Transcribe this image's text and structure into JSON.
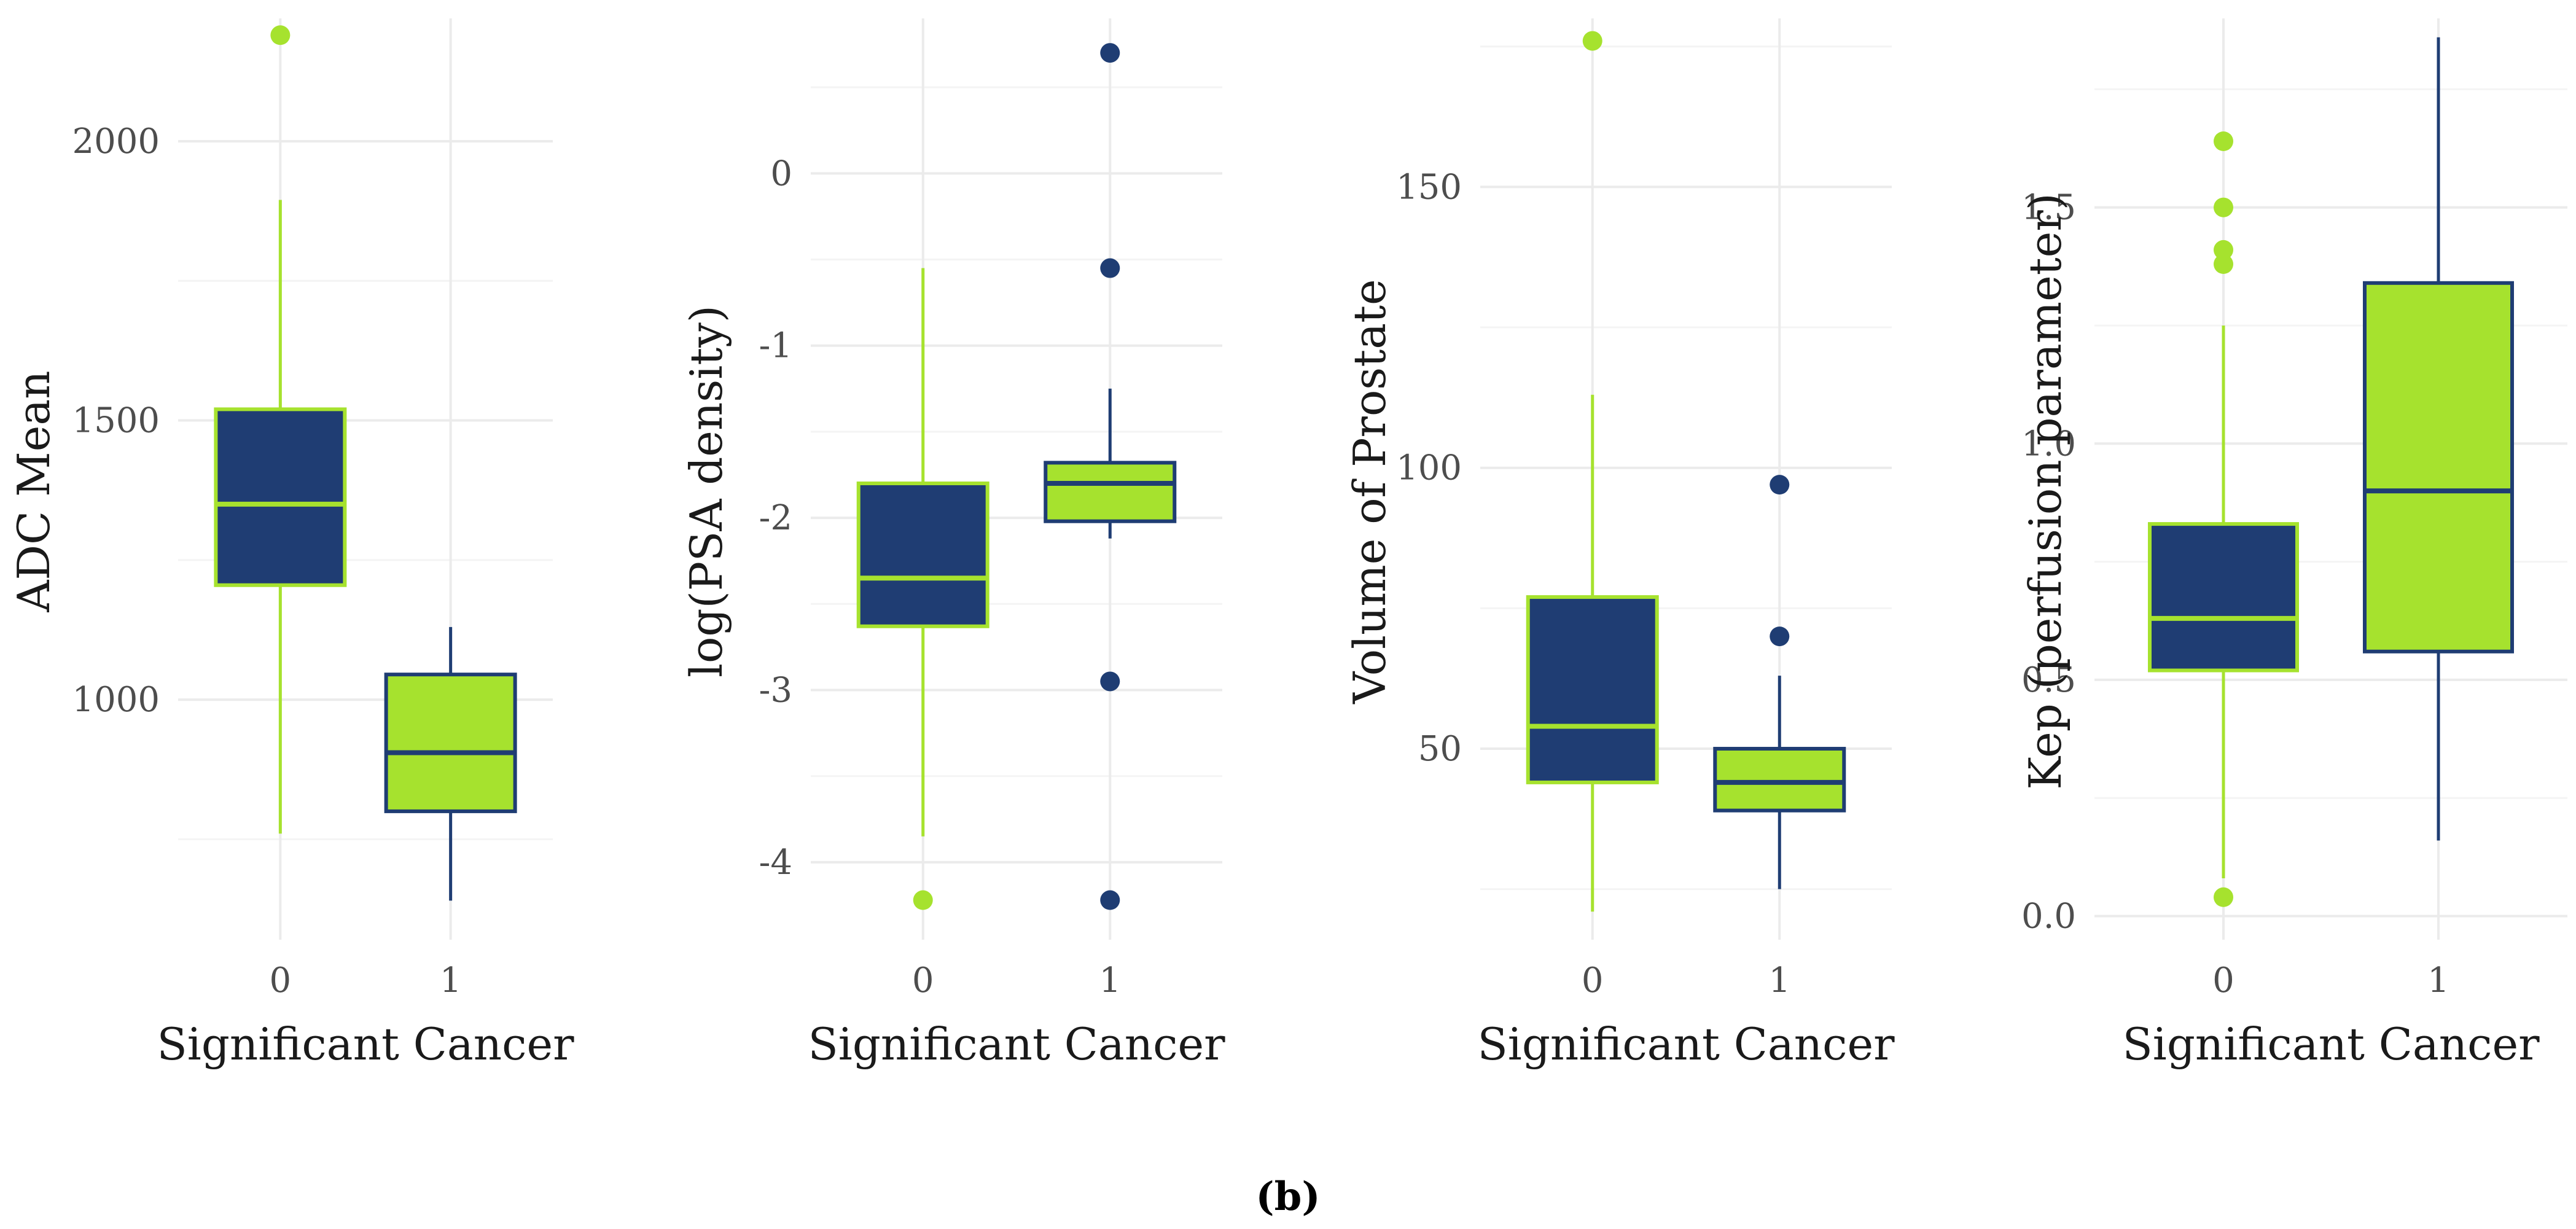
{
  "colors": {
    "navy": "#1f3d73",
    "lime": "#a6e22e",
    "grid_major": "#ebebeb",
    "grid_minor": "#f4f4f4"
  },
  "caption": "(b)",
  "chart_data": [
    {
      "type": "box",
      "ylabel": "ADC Mean",
      "xlabel": "Significant Cancer",
      "categories": [
        "0",
        "1"
      ],
      "yticks": [
        1000,
        1500,
        2000
      ],
      "ytick_labels": [
        "1000",
        "1500",
        "2000"
      ],
      "ylim": [
        570,
        2220
      ],
      "boxes": [
        {
          "group": "0",
          "fill": "navy",
          "line": "lime",
          "q1": 1205,
          "median": 1350,
          "q3": 1520,
          "whisker_low": 760,
          "whisker_high": 1895,
          "outliers": [
            2190
          ]
        },
        {
          "group": "1",
          "fill": "lime",
          "line": "navy",
          "q1": 800,
          "median": 905,
          "q3": 1045,
          "whisker_low": 640,
          "whisker_high": 1130,
          "outliers": []
        }
      ]
    },
    {
      "type": "box",
      "ylabel": "log(PSA density)",
      "xlabel": "Significant Cancer",
      "categories": [
        "0",
        "1"
      ],
      "yticks": [
        -4,
        -3,
        -2,
        -1,
        0
      ],
      "ytick_labels": [
        "-4",
        "-3",
        "-2",
        "-1",
        "0"
      ],
      "ylim": [
        -4.45,
        0.9
      ],
      "boxes": [
        {
          "group": "0",
          "fill": "navy",
          "line": "lime",
          "q1": -2.63,
          "median": -2.35,
          "q3": -1.8,
          "whisker_low": -3.85,
          "whisker_high": -0.55,
          "outliers": [
            -4.22
          ]
        },
        {
          "group": "1",
          "fill": "lime",
          "line": "navy",
          "q1": -2.02,
          "median": -1.8,
          "q3": -1.68,
          "whisker_low": -2.12,
          "whisker_high": -1.25,
          "outliers": [
            0.7,
            -0.55,
            -2.95,
            -4.22
          ]
        }
      ]
    },
    {
      "type": "box",
      "ylabel": "Volume of Prostate",
      "xlabel": "Significant Cancer",
      "categories": [
        "0",
        "1"
      ],
      "yticks": [
        50,
        100,
        150
      ],
      "ytick_labels": [
        "50",
        "100",
        "150"
      ],
      "ylim": [
        16,
        180
      ],
      "boxes": [
        {
          "group": "0",
          "fill": "navy",
          "line": "lime",
          "q1": 44,
          "median": 54,
          "q3": 77,
          "whisker_low": 21,
          "whisker_high": 113,
          "outliers": [
            176
          ]
        },
        {
          "group": "1",
          "fill": "lime",
          "line": "navy",
          "q1": 39,
          "median": 44,
          "q3": 50,
          "whisker_low": 25,
          "whisker_high": 63,
          "outliers": [
            70,
            97
          ]
        }
      ]
    },
    {
      "type": "box",
      "ylabel": "Kep (perfusion parameter)",
      "xlabel": "Significant Cancer",
      "categories": [
        "0",
        "1"
      ],
      "yticks": [
        0.0,
        0.5,
        1.0,
        1.5
      ],
      "ytick_labels": [
        "0.0",
        "0.5",
        "1.0",
        "1.5"
      ],
      "ylim": [
        -0.05,
        1.9
      ],
      "boxes": [
        {
          "group": "0",
          "fill": "navy",
          "line": "lime",
          "q1": 0.52,
          "median": 0.63,
          "q3": 0.83,
          "whisker_low": 0.08,
          "whisker_high": 1.25,
          "outliers": [
            0.04,
            1.38,
            1.41,
            1.5,
            1.64
          ]
        },
        {
          "group": "1",
          "fill": "lime",
          "line": "navy",
          "q1": 0.56,
          "median": 0.9,
          "q3": 1.34,
          "whisker_low": 0.16,
          "whisker_high": 1.86,
          "outliers": []
        }
      ]
    }
  ]
}
